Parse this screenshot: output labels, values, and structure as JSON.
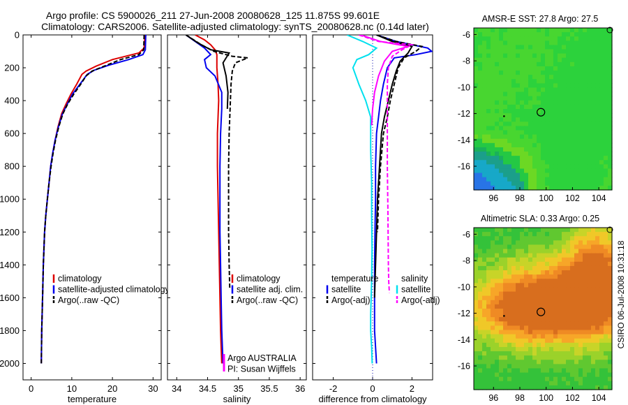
{
  "header": {
    "title_line1": "Argo profile: CS 5900026_211 27-Jun-2008 20080628_125 11.875S 99.601E",
    "title_line2": "Climatology: CARS2006. Satellite-adjusted climatology: synTS_20080628.nc (0.14d later)"
  },
  "side_stamp": "CSIRO 06-Jul-2008 10:31:18",
  "colors": {
    "red": "#dd0000",
    "blue": "#0000ee",
    "black": "#000000",
    "magenta": "#ff00ff",
    "cyan": "#00e0ee",
    "dotted": "#0000aa"
  },
  "chart_data": [
    {
      "type": "line",
      "id": "temperature",
      "xlabel": "temperature",
      "ylabel": "",
      "xlim": [
        -2,
        32
      ],
      "ylim": [
        2100,
        0
      ],
      "xticks": [
        0,
        10,
        20,
        30
      ],
      "yticks": [
        0,
        200,
        400,
        600,
        800,
        1000,
        1200,
        1400,
        1600,
        1800,
        2000
      ],
      "legend": [
        "climatology",
        "satellite-adjusted climatology",
        "Argo(..raw -QC)"
      ],
      "legend_placement": "lower-right",
      "series": [
        {
          "name": "climatology",
          "color": "red",
          "dash": "",
          "x": [
            28,
            27.8,
            26.5,
            20,
            16,
            13.5,
            12.5,
            11.2,
            9.8,
            8.6,
            7.5,
            6.6,
            5.9,
            5.3,
            4.8,
            4.4,
            4.0,
            3.6,
            3.3,
            3.0,
            2.8,
            2.6,
            2.5
          ],
          "y": [
            0,
            80,
            110,
            150,
            190,
            220,
            240,
            300,
            360,
            420,
            480,
            560,
            640,
            720,
            800,
            900,
            1000,
            1100,
            1200,
            1400,
            1600,
            1800,
            2000
          ]
        },
        {
          "name": "satellite-adjusted climatology",
          "color": "blue",
          "dash": "",
          "x": [
            28.2,
            28.1,
            27.5,
            24,
            19,
            15.5,
            13.8,
            12.0,
            10.2,
            8.9,
            7.7,
            6.7,
            5.9,
            5.3,
            4.8,
            4.4,
            4.0,
            3.6,
            3.3,
            3.0,
            2.8,
            2.6,
            2.5
          ],
          "y": [
            0,
            90,
            120,
            150,
            185,
            215,
            240,
            300,
            360,
            420,
            480,
            560,
            640,
            720,
            800,
            900,
            1000,
            1100,
            1200,
            1400,
            1600,
            1800,
            2000
          ]
        },
        {
          "name": "Argo(..raw -QC)",
          "color": "black",
          "dash": "6,3",
          "x": [
            27.8,
            27.7,
            26.5,
            22,
            18,
            15,
            13.5,
            12.2,
            10.5,
            9.0,
            7.8,
            6.8,
            6.0,
            5.4,
            4.9,
            4.4,
            4.0,
            3.6,
            3.3,
            3.0,
            2.8,
            2.6,
            2.5
          ],
          "y": [
            0,
            90,
            120,
            150,
            190,
            220,
            250,
            300,
            360,
            420,
            480,
            560,
            640,
            720,
            800,
            900,
            1000,
            1100,
            1200,
            1400,
            1600,
            1800,
            2000
          ]
        }
      ]
    },
    {
      "type": "line",
      "id": "salinity",
      "xlabel": "salinity",
      "xlim": [
        33.85,
        36.1
      ],
      "ylim": [
        2100,
        0
      ],
      "xticks": [
        34,
        34.5,
        35,
        35.5,
        36
      ],
      "xtick_labels": [
        "34",
        "34.5",
        "35",
        "35.5",
        "36"
      ],
      "legend": [
        "climatology",
        "satellite adj. clim.",
        "Argo(..raw -QC)"
      ],
      "legend_placement": "lower-right",
      "annotations": [
        "Argo AUSTRALIA",
        "PI: Susan Wijffels"
      ],
      "series": [
        {
          "name": "climatology",
          "color": "red",
          "dash": "",
          "x": [
            34.3,
            34.45,
            34.55,
            34.62,
            34.65,
            34.65,
            34.67,
            34.68,
            34.67,
            34.66,
            34.66,
            34.67,
            34.68,
            34.69,
            34.7,
            34.71,
            34.72,
            34.73
          ],
          "y": [
            0,
            30,
            60,
            90,
            120,
            200,
            300,
            400,
            500,
            600,
            800,
            1000,
            1200,
            1400,
            1600,
            1800,
            1900,
            2000
          ]
        },
        {
          "name": "satellite adj. clim.",
          "color": "blue",
          "dash": "",
          "x": [
            34.15,
            34.3,
            34.45,
            34.55,
            34.45,
            34.48,
            34.62,
            34.73,
            34.73,
            34.71,
            34.7,
            34.7,
            34.7,
            34.71,
            34.72,
            34.73,
            34.74,
            34.75
          ],
          "y": [
            0,
            40,
            80,
            120,
            150,
            200,
            250,
            350,
            450,
            600,
            800,
            1000,
            1200,
            1400,
            1600,
            1800,
            1900,
            2000
          ]
        },
        {
          "name": "Argo(..raw -QC)",
          "color": "black",
          "dash": "6,3",
          "x": [
            34.15,
            34.4,
            34.6,
            34.9,
            35.15,
            34.95,
            34.9,
            34.88,
            34.87,
            34.85,
            34.84,
            34.84,
            34.84,
            34.85,
            34.86
          ],
          "y": [
            0,
            60,
            100,
            130,
            140,
            170,
            220,
            300,
            400,
            600,
            800,
            1000,
            1200,
            1400,
            1550
          ]
        },
        {
          "name": "",
          "color": "black",
          "dash": "",
          "x": [
            34.15,
            34.35,
            34.55,
            34.85,
            34.75,
            34.8,
            34.83,
            34.82
          ],
          "y": [
            0,
            50,
            90,
            110,
            170,
            250,
            350,
            450
          ]
        }
      ]
    },
    {
      "type": "line",
      "id": "difference",
      "xlabel": "difference from climatology",
      "xlim": [
        -3.05,
        3.05
      ],
      "ylim": [
        2100,
        0
      ],
      "xticks": [
        -2,
        0,
        2
      ],
      "xtick_labels": [
        "-2",
        "0",
        "2"
      ],
      "legend": [
        "temperature",
        "satellite",
        "Argo(-adj)",
        "salinity",
        "satellite",
        "Argo(-adj)"
      ],
      "legend_placement": "lower",
      "series": [
        {
          "name": "temperature satellite",
          "color": "blue",
          "dash": "",
          "x": [
            0.2,
            1.2,
            2.8,
            3.0,
            2.2,
            1.1,
            0.75,
            0.55,
            0.4,
            0.3,
            0.2,
            0.15,
            0.15,
            0.12,
            0.1,
            0.1,
            0.1,
            0.1,
            0.15,
            0.2
          ],
          "y": [
            0,
            40,
            80,
            100,
            120,
            140,
            200,
            300,
            400,
            500,
            600,
            800,
            1000,
            1200,
            1400,
            1600,
            1700,
            1800,
            1900,
            2000
          ]
        },
        {
          "name": "temperature Argo(-adj)",
          "color": "black",
          "dash": "6,3",
          "x": [
            0.2,
            1.2,
            2.5,
            2.2,
            1.6,
            1.3,
            1.1,
            0.9,
            0.75,
            0.55,
            0.4,
            0.3,
            0.25
          ],
          "y": [
            0,
            40,
            70,
            100,
            140,
            200,
            300,
            400,
            500,
            600,
            800,
            1000,
            1200
          ]
        },
        {
          "name": "",
          "color": "black",
          "dash": "",
          "x": [
            0.2,
            1.0,
            2.0,
            1.8,
            1.4,
            1.2,
            1.0,
            0.8,
            0.6,
            0.45,
            0.35,
            0.25,
            0.2,
            0.15,
            0.1
          ],
          "y": [
            0,
            40,
            70,
            110,
            160,
            220,
            300,
            400,
            500,
            600,
            800,
            1000,
            1200,
            1400,
            1600
          ]
        },
        {
          "name": "salinity satellite",
          "color": "cyan",
          "dash": "",
          "x": [
            -1.3,
            -0.5,
            0.2,
            -0.2,
            -0.8,
            -1.0,
            -0.7,
            -0.35,
            -0.1,
            -0.1,
            -0.05,
            -0.05,
            -0.03,
            -0.05,
            -0.1,
            -0.1,
            -0.05,
            -0.02
          ],
          "y": [
            0,
            40,
            80,
            120,
            150,
            200,
            300,
            400,
            500,
            700,
            900,
            1100,
            1300,
            1500,
            1700,
            1800,
            1900,
            2000
          ]
        },
        {
          "name": "salinity Argo(-adj)",
          "color": "magenta",
          "dash": "6,3",
          "x": [
            -0.7,
            0.3,
            2.0,
            1.5,
            1.0,
            0.8,
            0.75,
            0.75,
            0.75,
            0.78,
            0.8,
            0.82,
            0.85
          ],
          "y": [
            0,
            40,
            60,
            90,
            130,
            200,
            300,
            500,
            800,
            1100,
            1400,
            1500,
            1570
          ]
        },
        {
          "name": "",
          "color": "magenta",
          "dash": "",
          "x": [
            -0.6,
            0.4,
            1.8,
            1.0,
            0.6,
            0.3,
            0.1,
            0.0,
            -0.05
          ],
          "y": [
            0,
            40,
            70,
            100,
            160,
            250,
            350,
            450,
            550
          ]
        }
      ],
      "vertical_lines": [
        {
          "x": 0,
          "color": "dotted",
          "dash": "1,3"
        }
      ]
    }
  ],
  "maps": [
    {
      "id": "sst",
      "title": "AMSR-E SST: 27.8 Argo: 27.5",
      "xticks": [
        96,
        98,
        100,
        102,
        104
      ],
      "yticks": [
        -6,
        -8,
        -10,
        -12,
        -14,
        -16
      ],
      "lon_range": [
        94.5,
        105
      ],
      "lat_range": [
        -17.8,
        -5.5
      ],
      "marker_lon": 99.6,
      "marker_lat": -11.9,
      "dot_lon": 96.8,
      "dot_lat": -12.2,
      "colors": [
        "#2cd23c",
        "#48d630",
        "#6cd824",
        "#24c844",
        "#1ab05a",
        "#1b9f8a",
        "#17a8c8",
        "#2874e6"
      ]
    },
    {
      "id": "sla",
      "title": "Altimetric SLA: 0.33 Argo: 0.25",
      "xticks": [
        96,
        98,
        100,
        102,
        104
      ],
      "yticks": [
        -6,
        -8,
        -10,
        -12,
        -14,
        -16
      ],
      "lon_range": [
        94.5,
        105
      ],
      "lat_range": [
        -17.8,
        -5.5
      ],
      "marker_lon": 99.6,
      "marker_lat": -11.9,
      "dot_lon": 96.8,
      "dot_lat": -12.2,
      "colors": [
        "#34c23a",
        "#60c830",
        "#9bd22a",
        "#c8d428",
        "#f0c828",
        "#f7a628",
        "#ef8a24",
        "#d86e1e"
      ]
    }
  ]
}
